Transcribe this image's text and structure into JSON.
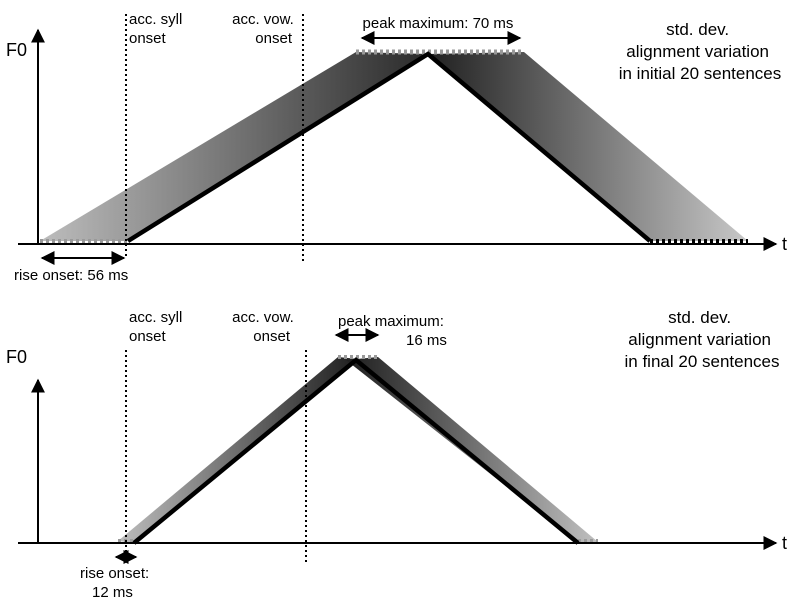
{
  "panels": [
    {
      "id": "initial",
      "y_axis_label": "F0",
      "x_axis_label": "t",
      "acc_syll_onset_label": [
        "acc. syll",
        "onset"
      ],
      "acc_vow_onset_label": [
        "acc. vow.",
        "onset"
      ],
      "peak_label": [
        "peak maximum: 70 ms"
      ],
      "rise_label": [
        "rise onset: 56 ms"
      ],
      "std_dev_label": [
        "std. dev.",
        "alignment variation",
        "in initial 20 sentences"
      ],
      "peak_max_ms": 70,
      "rise_onset_ms": 56
    },
    {
      "id": "final",
      "y_axis_label": "F0",
      "x_axis_label": "t",
      "acc_syll_onset_label": [
        "acc. syll",
        "onset"
      ],
      "acc_vow_onset_label": [
        "acc. vow.",
        "onset"
      ],
      "peak_label": [
        "peak maximum:",
        "16 ms"
      ],
      "rise_label": [
        "rise onset:",
        "12 ms"
      ],
      "std_dev_label": [
        "std. dev.",
        "alignment variation",
        "in final 20 sentences"
      ],
      "peak_max_ms": 16,
      "rise_onset_ms": 12
    }
  ],
  "colors": {
    "contour": "#000000",
    "band_light": "#b4b4b4",
    "band_dark": "#2a2a2a",
    "dotted_range": "#999999"
  }
}
